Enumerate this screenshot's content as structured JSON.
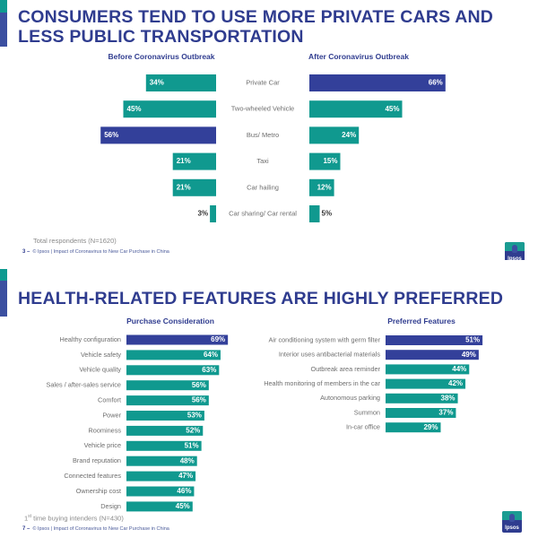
{
  "colors": {
    "teal": "#10998f",
    "navy": "#33409a",
    "title": "#2f3c8f",
    "label": "#6e6e6e"
  },
  "slide1": {
    "title_line1": "CONSUMERS TEND TO USE MORE PRIVATE CARS AND",
    "title_line2": "LESS PUBLIC TRANSPORTATION",
    "footnote": "Total respondents (N=1620)",
    "page_number": "3 –",
    "source": "© Ipsos | Impact of Coronavirus to New Car Purchase in China",
    "logo_text": "Ipsos"
  },
  "slide2": {
    "title": "HEALTH-RELATED FEATURES ARE HIGHLY PREFERRED",
    "footnote_prefix": "1",
    "footnote_sup": "st",
    "footnote_rest": " time buying intenders (N=430)",
    "page_number": "7 –",
    "source": "© Ipsos | Impact of Coronavirus to New Car Purchase in China",
    "logo_text": "Ipsos"
  },
  "chart_data": [
    {
      "type": "bar",
      "orientation": "horizontal-butterfly",
      "title": "Consumers tend to use more private cars and less public transportation",
      "categories": [
        "Private Car",
        "Two-wheeled Vehicle",
        "Bus/ Metro",
        "Taxi",
        "Car hailing",
        "Car sharing/ Car rental"
      ],
      "series": [
        {
          "name": "Before Coronavirus Outbreak",
          "values": [
            34,
            45,
            56,
            21,
            21,
            3
          ],
          "highlight": [
            false,
            false,
            true,
            false,
            false,
            false
          ]
        },
        {
          "name": "After Coronavirus Outbreak",
          "values": [
            66,
            45,
            24,
            15,
            12,
            5
          ],
          "highlight": [
            true,
            false,
            false,
            false,
            false,
            false
          ]
        }
      ],
      "unit": "%",
      "xlim": [
        0,
        70
      ],
      "grid": false
    },
    {
      "type": "bar",
      "orientation": "horizontal",
      "title": "Purchase Consideration",
      "categories": [
        "Healthy configuration",
        "Vehicle safety",
        "Vehicle quality",
        "Sales / after-sales service",
        "Comfort",
        "Power",
        "Roominess",
        "Vehicle price",
        "Brand reputation",
        "Connected features",
        "Ownership cost",
        "Design"
      ],
      "values": [
        69,
        64,
        63,
        56,
        56,
        53,
        52,
        51,
        48,
        47,
        46,
        45
      ],
      "highlight": [
        true,
        false,
        false,
        false,
        false,
        false,
        false,
        false,
        false,
        false,
        false,
        false
      ],
      "unit": "%",
      "xlim": [
        0,
        70
      ],
      "grid": false
    },
    {
      "type": "bar",
      "orientation": "horizontal",
      "title": "Preferred Features",
      "categories": [
        "Air conditioning system with germ filter",
        "Interior uses antibacterial materials",
        "Outbreak area reminder",
        "Health monitoring of members in the car",
        "Autonomous parking",
        "Summon",
        "In-car office"
      ],
      "values": [
        51,
        49,
        44,
        42,
        38,
        37,
        29
      ],
      "highlight": [
        true,
        true,
        false,
        false,
        false,
        false,
        false
      ],
      "unit": "%",
      "xlim": [
        0,
        55
      ],
      "grid": false
    }
  ]
}
